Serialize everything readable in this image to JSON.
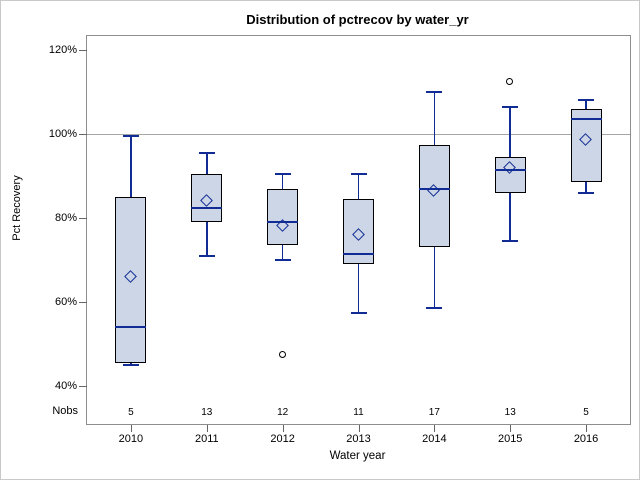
{
  "colors": {
    "navy": "#112c94",
    "boxFill": "#ccd6e6",
    "boxBorder": "#000000",
    "plotBorder": "#8e8e8e",
    "gridline": "#a6a6a6",
    "tick": "#666666",
    "frame": "#c9c9c9"
  },
  "chart_data": {
    "type": "boxplot",
    "title": "Distribution of pctrecov by water_yr",
    "xlabel": "Water year",
    "ylabel": "Pct Recovery",
    "nobs_label": "Nobs",
    "reference_line_value": 100,
    "grid": "reference line at 100% only",
    "legend": "none",
    "y_axis_unit": "percent",
    "y_ticks": [
      {
        "label": "120%",
        "value": 120
      },
      {
        "label": "100%",
        "value": 100
      },
      {
        "label": "80%",
        "value": 80
      },
      {
        "label": "60%",
        "value": 60
      },
      {
        "label": "40%",
        "value": 40
      }
    ],
    "groups": [
      {
        "year": "2010",
        "nobs": "5",
        "min": 45,
        "q1": 45.5,
        "median": 54,
        "q3": 85,
        "max": 99.5,
        "mean": 66,
        "outliers": []
      },
      {
        "year": "2011",
        "nobs": "13",
        "min": 71,
        "q1": 79,
        "median": 82.5,
        "q3": 90.5,
        "max": 95.5,
        "mean": 84,
        "outliers": []
      },
      {
        "year": "2012",
        "nobs": "12",
        "min": 70,
        "q1": 73.5,
        "median": 79,
        "q3": 87,
        "max": 90.5,
        "mean": 78,
        "outliers": [
          47.5
        ]
      },
      {
        "year": "2013",
        "nobs": "11",
        "min": 57.5,
        "q1": 69,
        "median": 71.5,
        "q3": 84.5,
        "max": 90.5,
        "mean": 76,
        "outliers": []
      },
      {
        "year": "2014",
        "nobs": "17",
        "min": 58.5,
        "q1": 73,
        "median": 87,
        "q3": 97.5,
        "max": 110,
        "mean": 86.5,
        "outliers": []
      },
      {
        "year": "2015",
        "nobs": "13",
        "min": 74.5,
        "q1": 86,
        "median": 91.5,
        "q3": 94.5,
        "max": 106.5,
        "mean": 92,
        "outliers": [
          112.5
        ]
      },
      {
        "year": "2016",
        "nobs": "5",
        "min": 86,
        "q1": 88.5,
        "median": 103.5,
        "q3": 106,
        "max": 108,
        "mean": 98.5,
        "outliers": []
      }
    ]
  }
}
